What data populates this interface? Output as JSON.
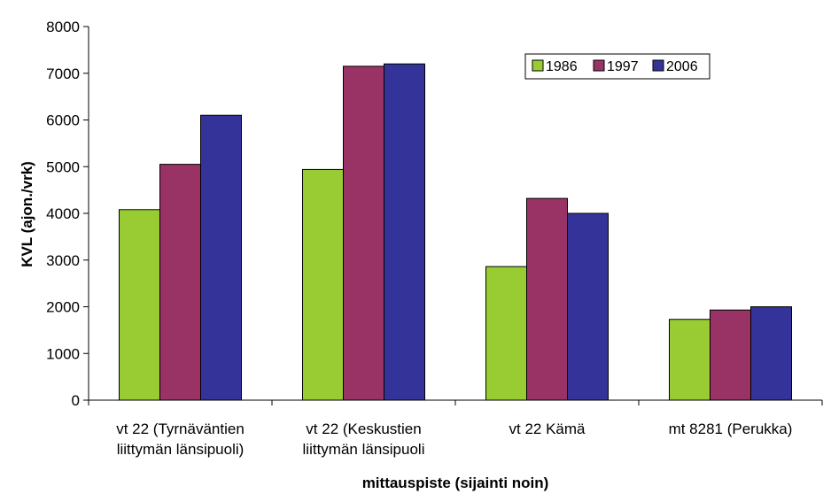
{
  "chart_data": {
    "type": "bar",
    "title": "",
    "xlabel": "mittauspiste (sijainti noin)",
    "ylabel": "KVL (ajon./vrk)",
    "ylim": [
      0,
      8000
    ],
    "yticks": [
      0,
      1000,
      2000,
      3000,
      4000,
      5000,
      6000,
      7000,
      8000
    ],
    "grid": false,
    "legend_position": "top-right",
    "categories": [
      [
        "vt 22 (Tyrnäväntien",
        "liittymän länsipuoli)"
      ],
      [
        "vt 22 (Keskustien",
        "liittymän länsipuoli"
      ],
      [
        "vt 22 Kämä"
      ],
      [
        "mt 8281 (Perukka)"
      ]
    ],
    "series": [
      {
        "name": "1986",
        "color": "#99cc33",
        "values": [
          4080,
          4940,
          2860,
          1730
        ]
      },
      {
        "name": "1997",
        "color": "#993366",
        "values": [
          5050,
          7150,
          4320,
          1930
        ]
      },
      {
        "name": "2006",
        "color": "#333399",
        "values": [
          6100,
          7200,
          4000,
          2000
        ]
      }
    ]
  }
}
